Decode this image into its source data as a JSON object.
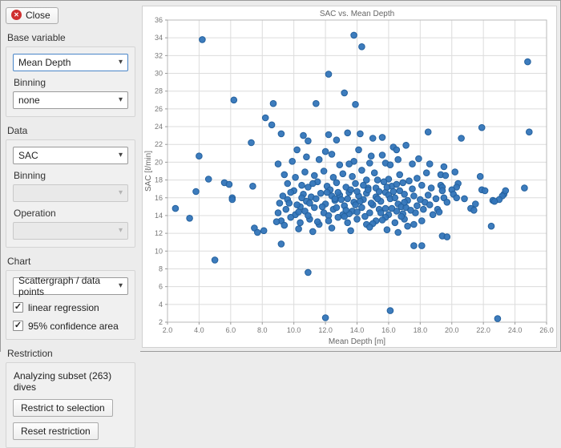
{
  "sidebar": {
    "close_button": "Close",
    "base_variable": {
      "label": "Base variable",
      "value": "Mean Depth",
      "binning_label": "Binning",
      "binning_value": "none"
    },
    "data": {
      "label": "Data",
      "value": "SAC",
      "binning_label": "Binning",
      "binning_value": "",
      "operation_label": "Operation",
      "operation_value": ""
    },
    "chart": {
      "label": "Chart",
      "type_value": "Scattergraph / data points",
      "checkboxes": [
        {
          "label": "linear regression",
          "checked": true
        },
        {
          "label": "95% confidence area",
          "checked": true
        }
      ]
    },
    "restriction": {
      "label": "Restriction",
      "status": "Analyzing subset (263) dives",
      "restrict_button": "Restrict to selection",
      "reset_button": "Reset restriction"
    }
  },
  "chart_data": {
    "type": "scatter",
    "title": "SAC vs. Mean Depth",
    "xlabel": "Mean Depth [m]",
    "ylabel": "SAC [ℓ/min]",
    "xlim": [
      2,
      26
    ],
    "ylim": [
      2,
      36
    ],
    "xticks": [
      2,
      4,
      6,
      8,
      10,
      12,
      14,
      16,
      18,
      20,
      22,
      24,
      26
    ],
    "xtick_labels": [
      "2.0",
      "4.0",
      "6.0",
      "8.0",
      "10.0",
      "12.0",
      "14.0",
      "16.0",
      "18.0",
      "20.0",
      "22.0",
      "24.0",
      "26.0"
    ],
    "yticks": [
      2,
      4,
      6,
      8,
      10,
      12,
      14,
      16,
      18,
      20,
      22,
      24,
      26,
      28,
      30,
      32,
      34,
      36
    ],
    "grid": true,
    "marker_color": "#3375b9",
    "marker_edge": "#24619e",
    "points": [
      [
        4.2,
        33.8
      ],
      [
        13.8,
        34.3
      ],
      [
        14.3,
        33.0
      ],
      [
        24.8,
        31.3
      ],
      [
        12.2,
        29.9
      ],
      [
        13.2,
        27.8
      ],
      [
        6.2,
        27.0
      ],
      [
        8.7,
        26.6
      ],
      [
        11.4,
        26.6
      ],
      [
        13.9,
        26.5
      ],
      [
        8.2,
        25.0
      ],
      [
        8.6,
        24.2
      ],
      [
        21.9,
        23.9
      ],
      [
        18.5,
        23.4
      ],
      [
        24.9,
        23.4
      ],
      [
        20.6,
        22.7
      ],
      [
        7.3,
        22.2
      ],
      [
        9.2,
        23.2
      ],
      [
        10.6,
        23.0
      ],
      [
        10.9,
        22.4
      ],
      [
        12.2,
        23.1
      ],
      [
        12.7,
        22.5
      ],
      [
        13.4,
        23.3
      ],
      [
        14.2,
        23.2
      ],
      [
        15.0,
        22.7
      ],
      [
        15.6,
        22.8
      ],
      [
        16.3,
        21.7
      ],
      [
        17.1,
        21.9
      ],
      [
        16.5,
        21.4
      ],
      [
        14.1,
        21.4
      ],
      [
        4.0,
        20.7
      ],
      [
        14.9,
        20.7
      ],
      [
        15.6,
        20.8
      ],
      [
        13.8,
        20.1
      ],
      [
        14.8,
        19.9
      ],
      [
        15.8,
        19.9
      ],
      [
        17.5,
        19.8
      ],
      [
        18.6,
        19.8
      ],
      [
        19.5,
        19.5
      ],
      [
        12.4,
        20.9
      ],
      [
        11.6,
        20.3
      ],
      [
        10.8,
        20.6
      ],
      [
        9.9,
        20.1
      ],
      [
        9.0,
        19.8
      ],
      [
        12.9,
        19.7
      ],
      [
        13.5,
        19.8
      ],
      [
        16.6,
        20.3
      ],
      [
        16.1,
        19.7
      ],
      [
        17.9,
        20.4
      ],
      [
        12.0,
        21.2
      ],
      [
        10.2,
        21.4
      ],
      [
        4.6,
        18.1
      ],
      [
        19.3,
        18.6
      ],
      [
        20.2,
        18.9
      ],
      [
        21.8,
        18.4
      ],
      [
        18.4,
        18.8
      ],
      [
        19.6,
        18.5
      ],
      [
        14.6,
        18.0
      ],
      [
        15.3,
        18.0
      ],
      [
        16.0,
        18.1
      ],
      [
        17.8,
        18.2
      ],
      [
        9.4,
        18.6
      ],
      [
        10.1,
        18.3
      ],
      [
        10.7,
        18.9
      ],
      [
        11.3,
        18.5
      ],
      [
        11.9,
        19.0
      ],
      [
        12.5,
        18.3
      ],
      [
        13.1,
        18.7
      ],
      [
        13.7,
        18.4
      ],
      [
        14.3,
        19.1
      ],
      [
        15.1,
        18.8
      ],
      [
        16.7,
        18.6
      ],
      [
        5.6,
        17.7
      ],
      [
        5.9,
        17.5
      ],
      [
        7.4,
        17.3
      ],
      [
        10.5,
        17.4
      ],
      [
        14.7,
        17.1
      ],
      [
        15.2,
        17.1
      ],
      [
        17.5,
        17.0
      ],
      [
        19.3,
        17.4
      ],
      [
        20.4,
        17.6
      ],
      [
        24.6,
        17.1
      ],
      [
        19.4,
        17.2
      ],
      [
        20.3,
        17.2
      ],
      [
        9.6,
        17.6
      ],
      [
        10.9,
        17.2
      ],
      [
        11.5,
        17.8
      ],
      [
        12.1,
        17.3
      ],
      [
        12.7,
        17.7
      ],
      [
        13.3,
        17.2
      ],
      [
        13.9,
        17.6
      ],
      [
        14.4,
        17.4
      ],
      [
        15.7,
        17.8
      ],
      [
        16.2,
        17.3
      ],
      [
        16.9,
        17.7
      ],
      [
        18.1,
        17.4
      ],
      [
        18.7,
        17.1
      ],
      [
        17.3,
        17.9
      ],
      [
        3.8,
        16.7
      ],
      [
        6.1,
        16.0
      ],
      [
        10.0,
        16.8
      ],
      [
        10.6,
        16.4
      ],
      [
        15.8,
        16.6
      ],
      [
        16.3,
        16.7
      ],
      [
        16.7,
        16.8
      ],
      [
        17.0,
        16.4
      ],
      [
        17.6,
        16.2
      ],
      [
        18.5,
        16.3
      ],
      [
        19.4,
        16.8
      ],
      [
        19.5,
        16.0
      ],
      [
        20.0,
        16.9
      ],
      [
        20.1,
        16.4
      ],
      [
        20.3,
        16.0
      ],
      [
        21.9,
        16.9
      ],
      [
        23.3,
        16.4
      ],
      [
        23.4,
        16.8
      ],
      [
        22.1,
        16.8
      ],
      [
        23.2,
        16.2
      ],
      [
        9.3,
        16.2
      ],
      [
        9.8,
        16.6
      ],
      [
        11.1,
        16.1
      ],
      [
        11.7,
        16.5
      ],
      [
        12.3,
        16.9
      ],
      [
        12.9,
        16.3
      ],
      [
        13.5,
        16.6
      ],
      [
        14.1,
        16.2
      ],
      [
        14.6,
        16.5
      ],
      [
        15.2,
        16.1
      ],
      [
        16.0,
        16.3
      ],
      [
        10.4,
        15.0
      ],
      [
        19.7,
        15.5
      ],
      [
        21.5,
        15.3
      ],
      [
        22.6,
        15.7
      ],
      [
        23.0,
        15.8
      ],
      [
        22.7,
        15.6
      ],
      [
        9.1,
        15.4
      ],
      [
        9.6,
        15.8
      ],
      [
        10.2,
        15.2
      ],
      [
        10.8,
        15.6
      ],
      [
        11.4,
        15.9
      ],
      [
        12.0,
        15.3
      ],
      [
        12.6,
        15.7
      ],
      [
        13.2,
        15.1
      ],
      [
        13.8,
        15.5
      ],
      [
        14.4,
        15.8
      ],
      [
        15.0,
        15.2
      ],
      [
        15.5,
        15.6
      ],
      [
        16.1,
        15.9
      ],
      [
        16.6,
        15.3
      ],
      [
        17.2,
        15.7
      ],
      [
        17.8,
        15.1
      ],
      [
        18.3,
        15.5
      ],
      [
        19.0,
        15.9
      ],
      [
        13.4,
        15.9
      ],
      [
        14.9,
        15.4
      ],
      [
        16.8,
        15.0
      ],
      [
        11.8,
        15.0
      ],
      [
        6.1,
        15.8
      ],
      [
        2.5,
        14.8
      ],
      [
        21.2,
        14.8
      ],
      [
        21.4,
        14.6
      ],
      [
        19.1,
        14.7
      ],
      [
        9.0,
        14.3
      ],
      [
        9.5,
        14.7
      ],
      [
        10.1,
        14.1
      ],
      [
        10.7,
        14.5
      ],
      [
        11.3,
        14.9
      ],
      [
        11.9,
        14.3
      ],
      [
        12.5,
        14.7
      ],
      [
        13.1,
        14.1
      ],
      [
        13.7,
        14.5
      ],
      [
        14.3,
        14.9
      ],
      [
        14.8,
        14.3
      ],
      [
        15.4,
        14.7
      ],
      [
        16.0,
        14.1
      ],
      [
        16.5,
        14.5
      ],
      [
        17.1,
        14.9
      ],
      [
        17.7,
        14.3
      ],
      [
        18.2,
        14.7
      ],
      [
        18.8,
        14.1
      ],
      [
        13.5,
        14.2
      ],
      [
        15.8,
        14.8
      ],
      [
        12.2,
        14.0
      ],
      [
        14.0,
        14.4
      ],
      [
        16.9,
        14.2
      ],
      [
        3.4,
        13.7
      ],
      [
        9.2,
        13.4
      ],
      [
        9.8,
        13.8
      ],
      [
        10.4,
        13.2
      ],
      [
        11.0,
        13.6
      ],
      [
        11.6,
        13.0
      ],
      [
        12.2,
        13.4
      ],
      [
        12.8,
        13.8
      ],
      [
        13.4,
        13.2
      ],
      [
        14.0,
        13.6
      ],
      [
        14.6,
        13.0
      ],
      [
        15.2,
        13.4
      ],
      [
        15.8,
        13.8
      ],
      [
        16.4,
        13.2
      ],
      [
        17.0,
        13.6
      ],
      [
        17.6,
        13.0
      ],
      [
        18.1,
        13.4
      ],
      [
        13.2,
        13.9
      ],
      [
        15.0,
        13.1
      ],
      [
        7.5,
        12.6
      ],
      [
        7.7,
        12.1
      ],
      [
        8.1,
        12.3
      ],
      [
        22.5,
        12.8
      ],
      [
        10.3,
        12.5
      ],
      [
        11.2,
        12.2
      ],
      [
        12.4,
        12.6
      ],
      [
        13.6,
        12.3
      ],
      [
        14.8,
        12.7
      ],
      [
        15.9,
        12.4
      ],
      [
        17.2,
        12.8
      ],
      [
        16.6,
        12.1
      ],
      [
        9.2,
        10.8
      ],
      [
        17.6,
        10.6
      ],
      [
        18.1,
        10.6
      ],
      [
        19.4,
        11.7
      ],
      [
        19.7,
        11.6
      ],
      [
        5.0,
        9.0
      ],
      [
        10.9,
        7.6
      ],
      [
        16.1,
        3.3
      ],
      [
        22.9,
        2.4
      ],
      [
        12.0,
        2.5
      ],
      [
        8.9,
        13.3
      ],
      [
        9.4,
        12.9
      ],
      [
        10.9,
        14.0
      ],
      [
        11.5,
        13.3
      ],
      [
        12.7,
        14.9
      ],
      [
        13.0,
        15.8
      ],
      [
        13.6,
        16.9
      ],
      [
        14.2,
        15.6
      ],
      [
        14.7,
        16.9
      ],
      [
        15.3,
        15.9
      ],
      [
        15.9,
        17.2
      ],
      [
        16.4,
        16.0
      ],
      [
        17.0,
        15.5
      ],
      [
        12.8,
        16.6
      ],
      [
        11.2,
        17.6
      ],
      [
        10.5,
        16.0
      ],
      [
        12.4,
        16.2
      ],
      [
        13.9,
        15.2
      ],
      [
        15.5,
        14.3
      ],
      [
        16.2,
        14.8
      ],
      [
        17.4,
        14.6
      ],
      [
        18.0,
        15.8
      ],
      [
        18.6,
        15.2
      ],
      [
        19.2,
        14.4
      ],
      [
        20.8,
        15.9
      ],
      [
        12.6,
        15.9
      ],
      [
        13.3,
        14.6
      ],
      [
        14.5,
        13.9
      ],
      [
        15.6,
        13.5
      ],
      [
        16.8,
        13.9
      ],
      [
        11.0,
        15.4
      ],
      [
        10.3,
        14.4
      ],
      [
        9.7,
        15.4
      ],
      [
        12.1,
        16.6
      ],
      [
        14.0,
        16.7
      ],
      [
        15.4,
        16.7
      ],
      [
        16.5,
        17.5
      ]
    ]
  }
}
